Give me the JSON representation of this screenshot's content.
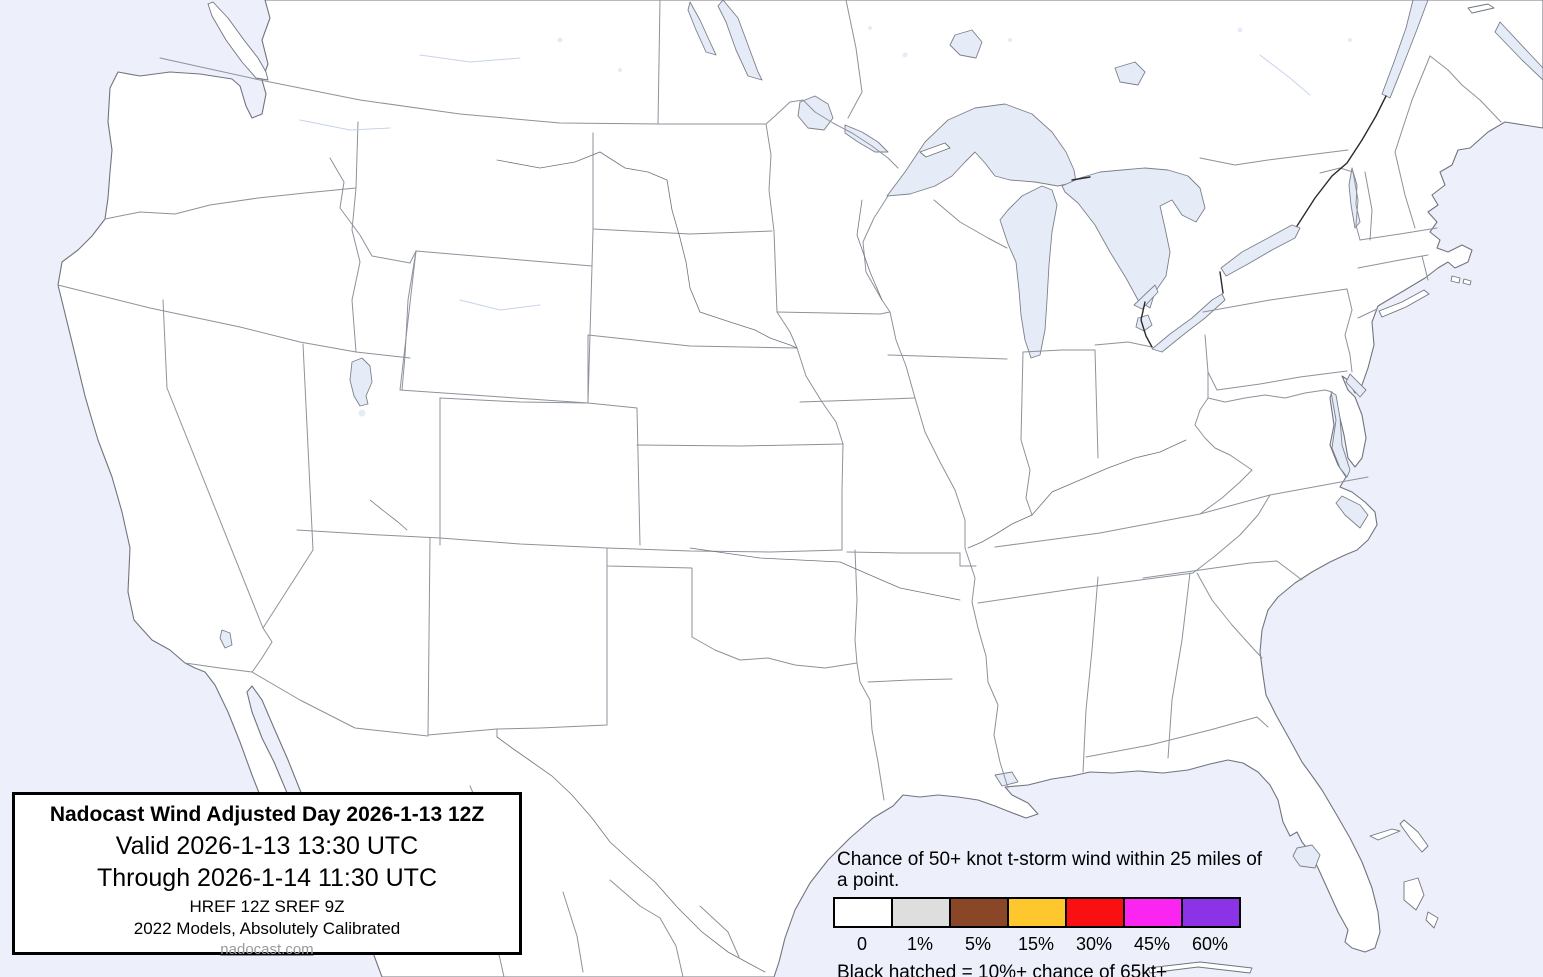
{
  "title_box": {
    "title": "Nadocast Wind Adjusted Day 2026-1-13 12Z",
    "valid": "Valid 2026-1-13 13:30 UTC",
    "through": "Through 2026-1-14 11:30 UTC",
    "models": "HREF 12Z SREF 9Z",
    "calibration": "2022 Models, Absolutely Calibrated",
    "website": "nadocast.com"
  },
  "legend": {
    "title": "Chance of 50+ knot t-storm wind within 25 miles of a point.",
    "swatches": [
      {
        "label": "0",
        "color": "#ffffff"
      },
      {
        "label": "1%",
        "color": "#dedede"
      },
      {
        "label": "5%",
        "color": "#8a4727"
      },
      {
        "label": "15%",
        "color": "#fec72e"
      },
      {
        "label": "30%",
        "color": "#fa1013"
      },
      {
        "label": "45%",
        "color": "#fb25f2"
      },
      {
        "label": "60%",
        "color": "#8b33e5"
      }
    ],
    "note": "Black hatched = 10%+ chance of 65kt+"
  },
  "map": {
    "colors": {
      "water": "#edeffb",
      "land": "#ffffff",
      "lakes": "#e6ebf8"
    }
  }
}
